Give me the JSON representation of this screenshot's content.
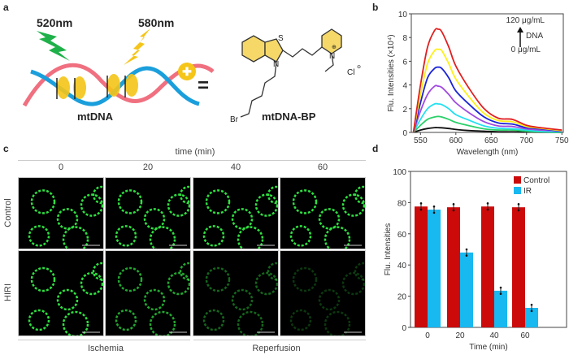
{
  "panels": {
    "a": "a",
    "b": "b",
    "c": "c",
    "d": "d"
  },
  "panel_a": {
    "excitation_label": "520nm",
    "emission_label": "580nm",
    "dna_label": "mtDNA",
    "equals": "=",
    "probe_name": "mtDNA-BP",
    "atoms": {
      "S": "S",
      "N1": "N",
      "N2": "N",
      "Br": "Br",
      "Cl": "Cl",
      "plus": "⊕",
      "minus": "⊖"
    },
    "colors": {
      "green_bolt": "#1fb04a",
      "yellow_bolt": "#f5c518",
      "strand_pink": "#f07080",
      "strand_blue": "#1a9fdc",
      "probe_yellow": "#f5c518"
    }
  },
  "panel_c": {
    "time_header": "time (min)",
    "columns": [
      "0",
      "20",
      "40",
      "60"
    ],
    "rows": [
      "Control",
      "HIRI"
    ],
    "phases": [
      "Ischemia",
      "Reperfusion"
    ],
    "signal_levels": {
      "Control": [
        1,
        1,
        1,
        1
      ],
      "HIRI": [
        1,
        0.75,
        0.45,
        0.25
      ]
    }
  },
  "chart_data": [
    {
      "type": "line",
      "xlabel": "Wavelength (nm)",
      "ylabel": "Flu. Intensities (×10⁴)",
      "xlim": [
        537,
        752
      ],
      "ylim": [
        0,
        10
      ],
      "xticks": [
        "550",
        "600",
        "650",
        "700",
        "750"
      ],
      "yticks": [
        "0",
        "2",
        "4",
        "6",
        "8",
        "10"
      ],
      "annotation": {
        "top": "120 μg/mL",
        "arrow_label": "DNA",
        "bottom": "0 μg/mL"
      },
      "x": [
        540,
        550,
        560,
        570,
        575,
        580,
        590,
        600,
        620,
        640,
        660,
        680,
        700,
        720,
        750
      ],
      "series": [
        {
          "color": "#111111",
          "values": [
            0,
            0.2,
            0.33,
            0.4,
            0.4,
            0.39,
            0.33,
            0.25,
            0.15,
            0.1,
            0.05,
            0.05,
            0.03,
            0.02,
            0
          ]
        },
        {
          "color": "#2bd06a",
          "values": [
            0,
            0.6,
            1.1,
            1.3,
            1.35,
            1.3,
            1.1,
            0.85,
            0.55,
            0.3,
            0.2,
            0.2,
            0.1,
            0.05,
            0
          ]
        },
        {
          "color": "#22e0f0",
          "values": [
            0,
            1.1,
            2.0,
            2.4,
            2.4,
            2.35,
            2.0,
            1.5,
            1.0,
            0.55,
            0.35,
            0.3,
            0.2,
            0.1,
            0.05
          ]
        },
        {
          "color": "#a04ae0",
          "values": [
            0,
            1.8,
            3.2,
            3.9,
            3.9,
            3.8,
            3.2,
            2.5,
            1.6,
            0.9,
            0.55,
            0.5,
            0.3,
            0.2,
            0.1
          ]
        },
        {
          "color": "#1a22d8",
          "values": [
            0,
            2.5,
            4.6,
            5.4,
            5.5,
            5.4,
            4.6,
            3.5,
            2.3,
            1.3,
            0.8,
            0.7,
            0.4,
            0.3,
            0.1
          ]
        },
        {
          "color": "#fff01a",
          "values": [
            0,
            3.2,
            5.8,
            6.9,
            7.0,
            6.9,
            5.8,
            4.5,
            2.9,
            1.6,
            1.0,
            0.9,
            0.5,
            0.35,
            0.15
          ]
        },
        {
          "color": "#e02020",
          "values": [
            0,
            4.0,
            7.2,
            8.6,
            8.7,
            8.5,
            7.2,
            5.6,
            3.6,
            2.0,
            1.2,
            1.1,
            0.6,
            0.4,
            0.2
          ]
        }
      ],
      "grid": false
    },
    {
      "type": "bar",
      "xlabel": "Time (min)",
      "ylabel": "Flu. Intensities",
      "ylim": [
        0,
        100
      ],
      "categories": [
        "0",
        "20",
        "40",
        "60"
      ],
      "yticks": [
        "0",
        "20",
        "40",
        "60",
        "80",
        "100"
      ],
      "legend_position": "top-right",
      "series": [
        {
          "name": "Control",
          "color": "#cc0a0a",
          "values": [
            77.5,
            77,
            77.5,
            77
          ]
        },
        {
          "name": "IR",
          "color": "#18b8f0",
          "values": [
            75.5,
            48,
            23.5,
            12.5
          ]
        }
      ],
      "grid": false
    }
  ]
}
